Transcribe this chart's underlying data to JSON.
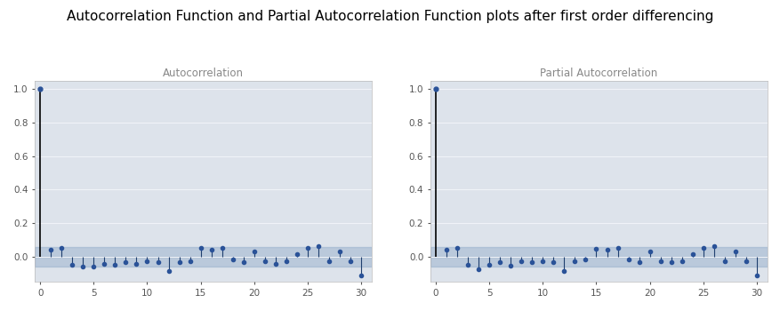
{
  "title": "Autocorrelation Function and Partial Autocorrelation Function plots after first order differencing",
  "title_fontsize": 11,
  "subplot_titles": [
    "Autocorrelation",
    "Partial Autocorrelation"
  ],
  "subplot_title_fontsize": 8.5,
  "acf_values": [
    1.0,
    0.04,
    0.055,
    -0.05,
    -0.06,
    -0.06,
    -0.04,
    -0.05,
    -0.03,
    -0.04,
    -0.025,
    -0.03,
    -0.085,
    -0.03,
    -0.025,
    0.055,
    0.04,
    0.055,
    -0.015,
    -0.03,
    0.03,
    -0.025,
    -0.04,
    -0.025,
    0.015,
    0.055,
    0.065,
    -0.025,
    0.03,
    -0.025,
    -0.11
  ],
  "pacf_values": [
    1.0,
    0.04,
    0.055,
    -0.05,
    -0.075,
    -0.05,
    -0.03,
    -0.055,
    -0.025,
    -0.03,
    -0.025,
    -0.03,
    -0.085,
    -0.025,
    -0.015,
    0.05,
    0.04,
    0.055,
    -0.015,
    -0.03,
    0.03,
    -0.025,
    -0.03,
    -0.025,
    0.015,
    0.055,
    0.065,
    -0.025,
    0.03,
    -0.025,
    -0.11
  ],
  "conf_band": 0.06,
  "ylim": [
    -0.15,
    1.05
  ],
  "xlim": [
    -0.5,
    31
  ],
  "yticks": [
    0.0,
    0.2,
    0.4,
    0.6,
    0.8,
    1.0
  ],
  "xticks": [
    0,
    5,
    10,
    15,
    20,
    25,
    30
  ],
  "plot_background": "#dde3eb",
  "conf_band_color": "#7a9abf",
  "conf_band_alpha": 0.35,
  "stem_color": "#1f3f6e",
  "marker_color": "#2a5298",
  "zero_line_color": "#4a6a9a",
  "lag0_line_color": "black",
  "fig_facecolor": "#ffffff",
  "grid_color": "#f0f3f8",
  "tick_color": "#555555"
}
